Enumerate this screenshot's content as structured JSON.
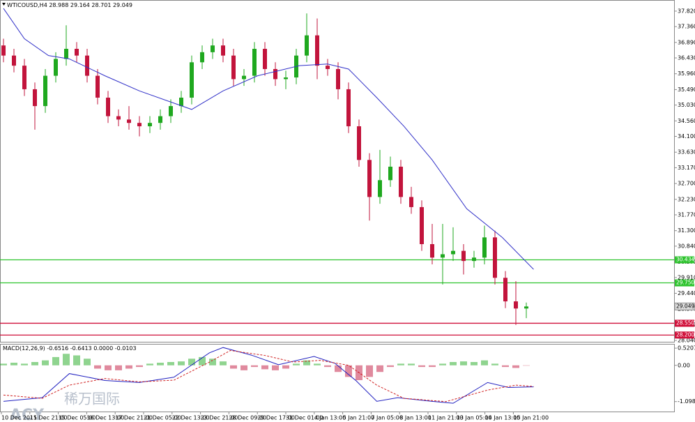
{
  "chart_data": {
    "type": "candlestick",
    "symbol": "WTICOUSD,H4",
    "up_color": "#1fa81f",
    "down_color": "#c2143c",
    "ylim": [
      28.0,
      38.15
    ],
    "yticks": [
      {
        "value": 37.82,
        "label": "37.820"
      },
      {
        "value": 37.36,
        "label": "37.360"
      },
      {
        "value": 36.89,
        "label": "36.890"
      },
      {
        "value": 36.43,
        "label": "36.430"
      },
      {
        "value": 35.96,
        "label": "35.960"
      },
      {
        "value": 35.49,
        "label": "35.490"
      },
      {
        "value": 35.03,
        "label": "35.030"
      },
      {
        "value": 34.56,
        "label": "34.560"
      },
      {
        "value": 34.1,
        "label": "34.100"
      },
      {
        "value": 33.63,
        "label": "33.630"
      },
      {
        "value": 33.17,
        "label": "33.170"
      },
      {
        "value": 32.7,
        "label": "32.700"
      },
      {
        "value": 32.23,
        "label": "32.230"
      },
      {
        "value": 31.77,
        "label": "31.770"
      },
      {
        "value": 31.3,
        "label": "31.300"
      },
      {
        "value": 30.84,
        "label": "30.840"
      },
      {
        "value": 30.37,
        "label": "30.370"
      },
      {
        "value": 29.91,
        "label": "29.910"
      },
      {
        "value": 29.44,
        "label": "29.440"
      },
      {
        "value": 28.97,
        "label": "28.970"
      },
      {
        "value": 28.51,
        "label": "28.510"
      },
      {
        "value": 28.04,
        "label": "28.040"
      }
    ],
    "dates": [
      "10 Dec 2015",
      "11 Dec 21:00",
      "15 Dec 05:00",
      "16 Dec 13:00",
      "17 Dec 21:00",
      "21 Dec 05:00",
      "22 Dec 13:00",
      "23 Dec 21:00",
      "28 Dec 09:00",
      "29 Dec 17:00",
      "31 Dec 01:00",
      "4 Jan 13:00",
      "5 Jan 21:00",
      "7 Jan 05:00",
      "8 Jan 13:00",
      "11 Jan 21:00",
      "13 Jan 05:00",
      "14 Jan 13:00",
      "15 Jan 21:00"
    ],
    "candles": {
      "open": [
        36.8,
        36.5,
        36.2,
        35.5,
        35.0,
        35.9,
        36.4,
        36.7,
        36.5,
        35.9,
        35.25,
        34.7,
        34.6,
        34.5,
        34.4,
        34.5,
        34.7,
        35.0,
        35.25,
        36.3,
        36.6,
        36.8,
        36.5,
        35.8,
        35.9,
        36.7,
        36.1,
        35.8,
        35.85,
        36.5,
        37.1,
        36.2,
        36.1,
        35.5,
        34.4,
        33.4,
        32.3,
        32.8,
        33.2,
        32.3,
        32.0,
        30.9,
        30.5,
        30.6,
        30.7,
        30.4,
        30.5,
        31.1,
        29.9,
        29.2,
        28.988
      ],
      "high": [
        37.0,
        36.7,
        36.4,
        35.7,
        36.1,
        36.6,
        37.4,
        36.9,
        36.7,
        36.1,
        35.45,
        34.9,
        35.0,
        34.7,
        34.7,
        34.9,
        35.2,
        35.45,
        36.5,
        36.8,
        37.0,
        37.0,
        36.7,
        36.1,
        36.9,
        36.9,
        36.3,
        36.05,
        36.7,
        37.75,
        37.6,
        36.4,
        36.3,
        35.7,
        34.6,
        33.6,
        33.7,
        33.5,
        33.4,
        32.6,
        32.2,
        31.5,
        31.5,
        31.4,
        30.9,
        30.7,
        31.45,
        31.3,
        30.1,
        29.8,
        29.164
      ],
      "low": [
        36.3,
        36.0,
        35.3,
        34.3,
        34.8,
        35.7,
        36.2,
        36.3,
        35.7,
        35.05,
        34.5,
        34.4,
        34.3,
        34.1,
        34.2,
        34.3,
        34.5,
        34.8,
        35.05,
        36.1,
        36.4,
        36.3,
        35.6,
        35.6,
        35.7,
        35.9,
        35.6,
        35.5,
        35.65,
        36.3,
        35.8,
        35.9,
        35.2,
        34.2,
        33.2,
        31.6,
        32.1,
        32.6,
        32.1,
        31.8,
        30.7,
        30.3,
        29.7,
        30.4,
        30.0,
        30.2,
        30.3,
        29.7,
        29.0,
        28.5,
        28.701
      ],
      "close": [
        36.5,
        36.2,
        35.5,
        35.0,
        35.9,
        36.4,
        36.7,
        36.5,
        35.9,
        35.25,
        34.7,
        34.6,
        34.5,
        34.4,
        34.5,
        34.7,
        35.0,
        35.25,
        36.3,
        36.6,
        36.8,
        36.5,
        35.8,
        35.9,
        36.7,
        36.1,
        35.8,
        35.85,
        36.5,
        37.1,
        36.2,
        36.1,
        35.5,
        34.4,
        33.4,
        32.3,
        32.8,
        33.2,
        32.3,
        32.0,
        30.9,
        30.5,
        30.6,
        30.7,
        30.4,
        30.5,
        31.1,
        29.9,
        29.2,
        28.988,
        29.049
      ]
    },
    "ma": {
      "color": "#3030c8",
      "x": [
        0,
        2,
        4.3,
        6.3,
        9.7,
        13,
        18,
        21,
        24.3,
        28.3,
        31,
        33,
        35.7,
        38.3,
        41,
        44.3,
        47.7,
        50.7
      ],
      "values": [
        37.9,
        37.0,
        36.5,
        36.4,
        35.9,
        35.45,
        34.9,
        35.45,
        35.9,
        36.2,
        36.25,
        36.1,
        35.25,
        34.4,
        33.4,
        31.95,
        31.1,
        30.15
      ]
    },
    "levels": [
      {
        "value": 30.434,
        "label": "30.434",
        "color": "#2fc42f"
      },
      {
        "value": 29.75,
        "label": "29.750",
        "color": "#2fc42f"
      },
      {
        "value": 28.55,
        "label": "28.550",
        "color": "#d0103a"
      },
      {
        "value": 28.2,
        "label": "28.200",
        "color": "#d0103a"
      }
    ],
    "macd": {
      "title": "MACD(12,26,9)",
      "ylim": [
        -1.4,
        0.65
      ],
      "yticks": [
        {
          "value": 0.5207,
          "label": "0.5207"
        },
        {
          "value": 0,
          "label": "0.00"
        },
        {
          "value": -1.0985,
          "label": "-1.0985"
        }
      ],
      "extra": {
        "value": 0,
        "label": "0.0000"
      },
      "histogram": [
        0.05,
        0.08,
        0.05,
        0.1,
        0.15,
        0.25,
        0.35,
        0.3,
        0.2,
        -0.1,
        -0.15,
        -0.15,
        -0.1,
        -0.05,
        0.05,
        0.08,
        0.1,
        0.12,
        0.2,
        0.25,
        0.2,
        0.12,
        -0.1,
        -0.15,
        -0.05,
        -0.12,
        -0.15,
        -0.1,
        0.05,
        0.15,
        0.05,
        -0.05,
        -0.2,
        -0.35,
        -0.45,
        -0.35,
        -0.2,
        -0.05,
        0.05,
        0.05,
        -0.05,
        -0.05,
        0.05,
        0.1,
        0.12,
        0.1,
        0.15,
        0.05,
        -0.05,
        -0.08,
        -0.0103
      ],
      "main": {
        "color": "#2020c0",
        "x": [
          0,
          3.7,
          6.3,
          9.7,
          13,
          16.3,
          19.7,
          21,
          23.7,
          26.3,
          29.7,
          31.7,
          33.7,
          35.7,
          37.7,
          41,
          43,
          46.3,
          48.3,
          50.7
        ],
        "values": [
          -1.09,
          -0.98,
          -0.25,
          -0.46,
          -0.52,
          -0.36,
          0.38,
          0.54,
          0.31,
          0.02,
          0.27,
          0.06,
          -0.46,
          -1.09,
          -0.98,
          -1.09,
          -1.15,
          -0.52,
          -0.67,
          -0.6516
        ]
      },
      "signal": {
        "color": "#d02020",
        "x": [
          0,
          3.7,
          6.3,
          9.7,
          13,
          16.3,
          19.7,
          21.7,
          25,
          27.7,
          30.3,
          33,
          35.7,
          38.3,
          42.3,
          46.3,
          49,
          50.7
        ],
        "values": [
          -0.9,
          -1.0,
          -0.6,
          -0.4,
          -0.5,
          -0.45,
          0.1,
          0.45,
          0.3,
          0.1,
          0.15,
          0.0,
          -0.6,
          -1.0,
          -1.1,
          -0.75,
          -0.6,
          -0.6413
        ]
      }
    },
    "watermark": [
      "ACY",
      "稀万国际"
    ]
  }
}
